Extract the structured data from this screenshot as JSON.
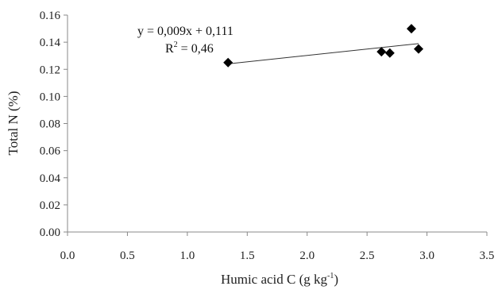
{
  "chart_data": {
    "type": "scatter",
    "title": "",
    "xlabel": "Humic acid C (g kg",
    "xlabel_sup": "-1",
    "xlabel_end": ")",
    "ylabel": "Total N (%)",
    "xlim": [
      0,
      3.5
    ],
    "ylim": [
      0,
      0.16
    ],
    "x_ticks": [
      "0.0",
      "0.5",
      "1.0",
      "1.5",
      "2.0",
      "2.5",
      "3.0",
      "3.5"
    ],
    "y_ticks": [
      "0.00",
      "0.02",
      "0.04",
      "0.06",
      "0.08",
      "0.10",
      "0.12",
      "0.14",
      "0.16"
    ],
    "grid": false,
    "legend": "none",
    "marker": "diamond",
    "marker_color": "#000000",
    "points": [
      {
        "x": 1.34,
        "y": 0.125
      },
      {
        "x": 2.62,
        "y": 0.133
      },
      {
        "x": 2.69,
        "y": 0.132
      },
      {
        "x": 2.87,
        "y": 0.15
      },
      {
        "x": 2.93,
        "y": 0.135
      }
    ],
    "trendline": {
      "x_start": 1.34,
      "y_start": 0.124,
      "x_end": 2.93,
      "y_end": 0.139
    },
    "annotations": {
      "equation": "y = 0,009x + 0,111",
      "r2_label": "R",
      "r2_sup": "2",
      "r2_value": " = 0,46"
    }
  }
}
